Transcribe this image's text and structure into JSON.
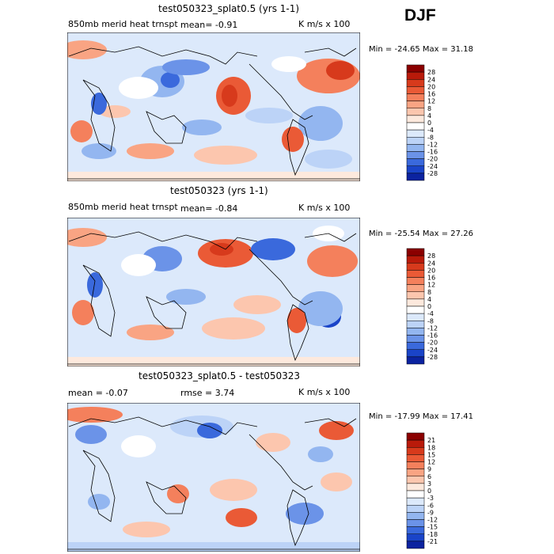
{
  "season": "DJF",
  "panels": [
    {
      "title": "test050323_splat0.5 (yrs 1-1)",
      "field": "850mb merid heat trnspt",
      "mean": "mean=   -0.91",
      "units": "K m/s x 100",
      "minmax": "Min = -24.65  Max =   31.18",
      "legend": [
        "28",
        "24",
        "20",
        "16",
        "12",
        "8",
        "4",
        "0",
        "-4",
        "-8",
        "-12",
        "-16",
        "-20",
        "-24",
        "-28"
      ]
    },
    {
      "title": "test050323 (yrs 1-1)",
      "field": "850mb merid heat trnspt",
      "mean": "mean=   -0.84",
      "units": "K m/s x 100",
      "minmax": "Min = -25.54  Max =   27.26",
      "legend": [
        "28",
        "24",
        "20",
        "16",
        "12",
        "8",
        "4",
        "0",
        "-4",
        "-8",
        "-12",
        "-16",
        "-20",
        "-24",
        "-28"
      ]
    },
    {
      "title": "test050323_splat0.5 - test050323",
      "mean": "mean =   -0.07",
      "rmse": "rmse =    3.74",
      "units": "K m/s x 100",
      "minmax": "Min = -17.99  Max =   17.41",
      "legend": [
        "21",
        "18",
        "15",
        "12",
        "9",
        "6",
        "3",
        "0",
        "-3",
        "-6",
        "-9",
        "-12",
        "-15",
        "-18",
        "-21"
      ]
    }
  ],
  "chart_data": [
    {
      "type": "heatmap",
      "title": "test050323_splat0.5 (yrs 1-1)",
      "variable": "850mb merid heat trnspt",
      "units": "K m/s x 100",
      "mean": -0.91,
      "min": -24.65,
      "max": 31.18,
      "color_levels": [
        -28,
        -24,
        -20,
        -16,
        -12,
        -8,
        -4,
        0,
        4,
        8,
        12,
        16,
        20,
        24,
        28
      ],
      "xlim": [
        0,
        360
      ],
      "ylim": [
        -90,
        90
      ]
    },
    {
      "type": "heatmap",
      "title": "test050323 (yrs 1-1)",
      "variable": "850mb merid heat trnspt",
      "units": "K m/s x 100",
      "mean": -0.84,
      "min": -25.54,
      "max": 27.26,
      "color_levels": [
        -28,
        -24,
        -20,
        -16,
        -12,
        -8,
        -4,
        0,
        4,
        8,
        12,
        16,
        20,
        24,
        28
      ],
      "xlim": [
        0,
        360
      ],
      "ylim": [
        -90,
        90
      ]
    },
    {
      "type": "heatmap",
      "title": "test050323_splat0.5 - test050323",
      "units": "K m/s x 100",
      "mean": -0.07,
      "rmse": 3.74,
      "min": -17.99,
      "max": 17.41,
      "color_levels": [
        -21,
        -18,
        -15,
        -12,
        -9,
        -6,
        -3,
        0,
        3,
        6,
        9,
        12,
        15,
        18,
        21
      ],
      "xlim": [
        0,
        360
      ],
      "ylim": [
        -90,
        90
      ]
    }
  ],
  "legend_colors": [
    "#8b0000",
    "#b91a0a",
    "#d73a1c",
    "#ea5a36",
    "#f4805c",
    "#f9a483",
    "#fcc6ae",
    "#fde9dd",
    "#ffffff",
    "#dce9fb",
    "#bcd3f7",
    "#93b6f0",
    "#6b93e8",
    "#3a69dc",
    "#1a44c8",
    "#0b23a0",
    "#04107a"
  ]
}
